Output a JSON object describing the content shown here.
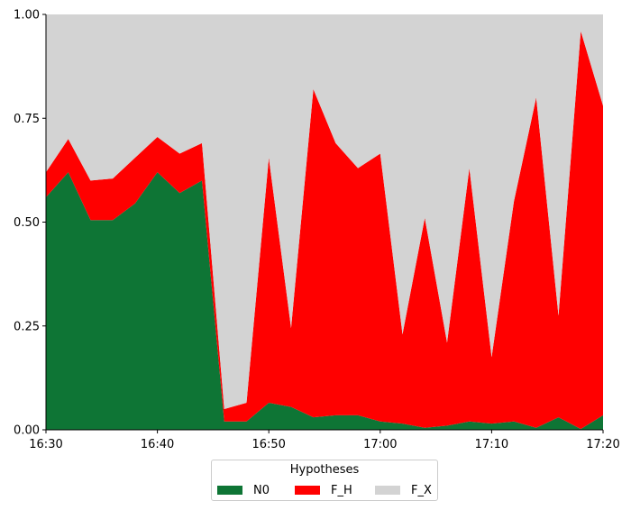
{
  "chart_data": {
    "type": "area",
    "stacked": true,
    "x": [
      "16:30",
      "16:32",
      "16:34",
      "16:36",
      "16:38",
      "16:40",
      "16:42",
      "16:44",
      "16:46",
      "16:48",
      "16:50",
      "16:52",
      "16:54",
      "16:56",
      "16:58",
      "17:00",
      "17:02",
      "17:04",
      "17:06",
      "17:08",
      "17:10",
      "17:12",
      "17:14",
      "17:16",
      "17:18",
      "17:20"
    ],
    "x_ticks": [
      "16:30",
      "16:40",
      "16:50",
      "17:00",
      "17:10",
      "17:20"
    ],
    "y_ticks": [
      "0.00",
      "0.25",
      "0.50",
      "0.75",
      "1.00"
    ],
    "ylim": [
      0,
      1
    ],
    "grid": false,
    "legend_title": "Hypotheses",
    "legend_position": "bottom-center",
    "series": [
      {
        "name": "N0",
        "color": "#0e7535",
        "values": [
          0.56,
          0.62,
          0.505,
          0.505,
          0.545,
          0.62,
          0.57,
          0.6,
          0.02,
          0.02,
          0.065,
          0.055,
          0.03,
          0.035,
          0.035,
          0.02,
          0.015,
          0.005,
          0.01,
          0.02,
          0.015,
          0.02,
          0.005,
          0.03,
          0.002,
          0.035
        ]
      },
      {
        "name": "F_H",
        "color": "#ff0000",
        "values": [
          0.06,
          0.08,
          0.095,
          0.1,
          0.11,
          0.085,
          0.095,
          0.09,
          0.03,
          0.045,
          0.59,
          0.19,
          0.79,
          0.655,
          0.595,
          0.645,
          0.215,
          0.505,
          0.2,
          0.61,
          0.16,
          0.53,
          0.795,
          0.245,
          0.958,
          0.745
        ]
      },
      {
        "name": "F_X",
        "color": "#d3d3d3",
        "values": [
          0.38,
          0.3,
          0.4,
          0.395,
          0.345,
          0.295,
          0.335,
          0.31,
          0.95,
          0.935,
          0.345,
          0.755,
          0.18,
          0.31,
          0.37,
          0.335,
          0.77,
          0.49,
          0.79,
          0.37,
          0.825,
          0.45,
          0.2,
          0.725,
          0.04,
          0.22
        ]
      }
    ]
  }
}
